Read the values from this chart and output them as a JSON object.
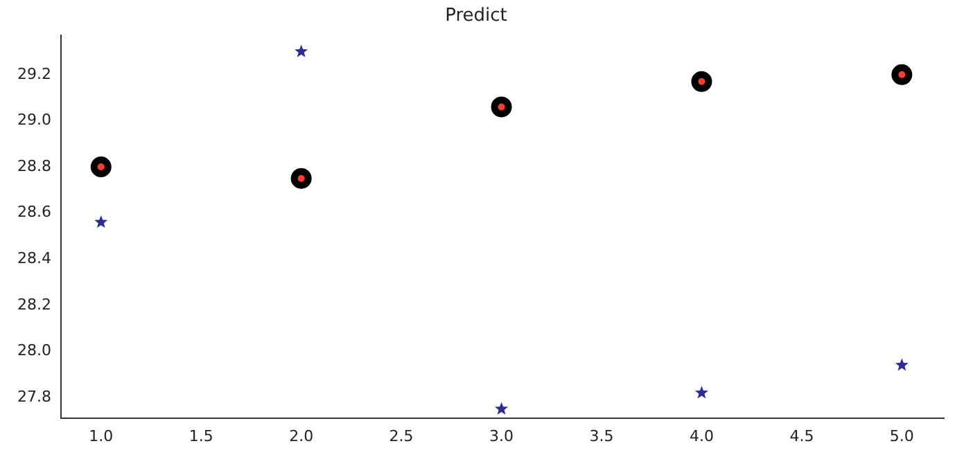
{
  "chart_data": {
    "type": "scatter",
    "title": "Predict",
    "x": [
      1,
      2,
      3,
      4,
      5
    ],
    "series": [
      {
        "color": "#000000",
        "values": [
          28.8,
          28.75,
          29.06,
          29.17,
          29.2
        ],
        "marker": "circle"
      },
      {
        "color": "#ff3b30",
        "values": [
          28.8,
          28.75,
          29.06,
          29.17,
          29.2
        ],
        "marker": "circle"
      },
      {
        "color": "#2b2b9a",
        "values": [
          28.56,
          29.3,
          27.75,
          27.82,
          27.94
        ],
        "marker": "star"
      }
    ],
    "xlim": [
      0.8,
      5.21
    ],
    "xticks": [
      {
        "value": 1,
        "label": "1.0"
      },
      {
        "value": 1.5,
        "label": "1.5"
      },
      {
        "value": 2,
        "label": "2.0"
      },
      {
        "value": 2.5,
        "label": "2.5"
      },
      {
        "value": 3,
        "label": "3.0"
      },
      {
        "value": 3.5,
        "label": "3.5"
      },
      {
        "value": 4,
        "label": "4.0"
      },
      {
        "value": 4.5,
        "label": "4.5"
      },
      {
        "value": 5,
        "label": "5.0"
      }
    ],
    "ylim": [
      27.71,
      29.37
    ],
    "yticks": [
      {
        "value": 27.8,
        "label": "27.8"
      },
      {
        "value": 28,
        "label": "28.0"
      },
      {
        "value": 28.2,
        "label": "28.2"
      },
      {
        "value": 28.4,
        "label": "28.4"
      },
      {
        "value": 28.6,
        "label": "28.6"
      },
      {
        "value": 28.8,
        "label": "28.8"
      },
      {
        "value": 29,
        "label": "29.0"
      },
      {
        "value": 29.2,
        "label": "29.2"
      }
    ],
    "grid": false,
    "legend": false
  }
}
